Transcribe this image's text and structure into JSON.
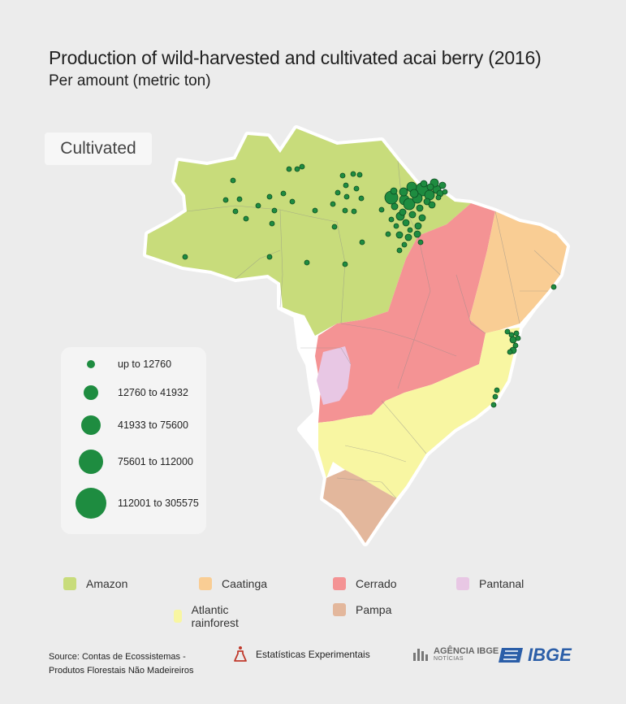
{
  "title": "Production of wild-harvested and cultivated acai berry (2016)",
  "subtitle": "Per amount (metric ton)",
  "badge": "Cultivated",
  "size_legend": [
    {
      "label": "up to 12760",
      "radius": 5
    },
    {
      "label": "12760 to 41932",
      "radius": 9
    },
    {
      "label": "41933 to 75600",
      "radius": 12
    },
    {
      "label": "75601 to 112000",
      "radius": 15
    },
    {
      "label": "112001 to 305575",
      "radius": 19
    }
  ],
  "biome_legend": [
    {
      "label": "Amazon",
      "color": "#c8dc7b"
    },
    {
      "label": "Caatinga",
      "color": "#f9cd94"
    },
    {
      "label": "Cerrado",
      "color": "#f49394"
    },
    {
      "label": "Pantanal",
      "color": "#e8c7e4"
    },
    {
      "label": "Atlantic rainforest",
      "color": "#f8f6a2"
    },
    {
      "label": "Pampa",
      "color": "#e3b79c"
    }
  ],
  "source": {
    "line1": "Source: Contas de Ecossistemas -",
    "line2": "Produtos Florestais Não Madeireiros"
  },
  "experimental_label": "Estatísticas Experimentais",
  "agencia_label": "AGÊNCIA IBGE",
  "agencia_sub": "NOTÍCIAS",
  "ibge_label": "IBGE",
  "icons": {
    "experimental": "flask-icon",
    "agencia": "bar-chart-icon",
    "ibge": "flag-logo"
  },
  "dot_color": "#1e8c40"
}
